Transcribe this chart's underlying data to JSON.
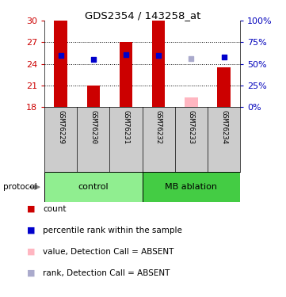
{
  "title": "GDS2354 / 143258_at",
  "samples": [
    "GSM76229",
    "GSM76230",
    "GSM76231",
    "GSM76232",
    "GSM76233",
    "GSM76234"
  ],
  "groups": [
    "control",
    "control",
    "control",
    "MB ablation",
    "MB ablation",
    "MB ablation"
  ],
  "group_colors": {
    "control": "#90EE90",
    "MB ablation": "#44CC44"
  },
  "bar_values": [
    30.0,
    21.0,
    27.0,
    30.0,
    19.35,
    23.5
  ],
  "bar_colors": [
    "#CC0000",
    "#CC0000",
    "#CC0000",
    "#CC0000",
    "#FFB6C1",
    "#CC0000"
  ],
  "rank_values": [
    25.2,
    24.65,
    25.3,
    25.2,
    24.7,
    25.0
  ],
  "rank_colors": [
    "#0000CC",
    "#0000CC",
    "#0000CC",
    "#0000CC",
    "#AAAACC",
    "#0000CC"
  ],
  "ylim_left": [
    18,
    30
  ],
  "ylim_right": [
    0,
    100
  ],
  "yticks_left": [
    18,
    21,
    24,
    27,
    30
  ],
  "yticks_right": [
    0,
    25,
    50,
    75,
    100
  ],
  "ytick_labels_right": [
    "0%",
    "25%",
    "50%",
    "75%",
    "100%"
  ],
  "bar_bottom": 18,
  "plot_bg": "#FFFFFF",
  "label_color_left": "#CC0000",
  "label_color_right": "#0000BB",
  "sample_bg": "#CCCCCC",
  "legend_items": [
    {
      "color": "#CC0000",
      "label": "count"
    },
    {
      "color": "#0000CC",
      "label": "percentile rank within the sample"
    },
    {
      "color": "#FFB6C1",
      "label": "value, Detection Call = ABSENT"
    },
    {
      "color": "#AAAACC",
      "label": "rank, Detection Call = ABSENT"
    }
  ]
}
